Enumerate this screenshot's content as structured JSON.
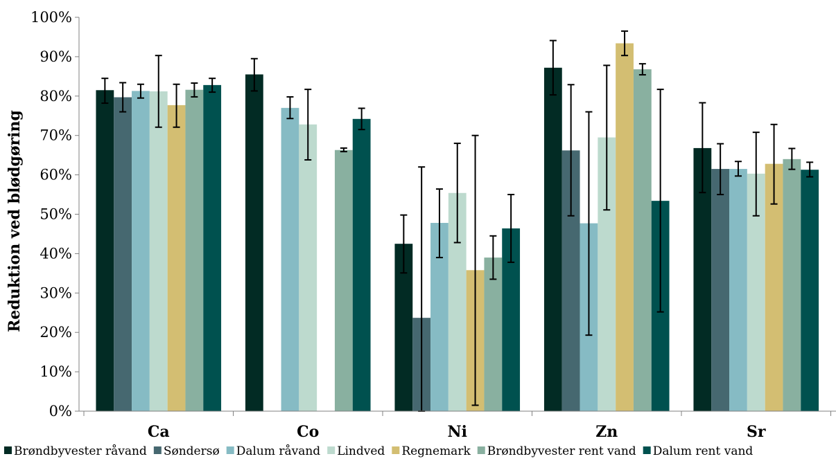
{
  "chart_data": {
    "type": "bar",
    "title": "",
    "xlabel": "",
    "ylabel": "Reduktion ved blødgøring",
    "ylim": [
      0,
      100
    ],
    "yticks": [
      "0%",
      "10%",
      "20%",
      "30%",
      "40%",
      "50%",
      "60%",
      "70%",
      "80%",
      "90%",
      "100%"
    ],
    "categories": [
      "Ca",
      "Co",
      "Ni",
      "Zn",
      "Sr"
    ],
    "legend_position": "bottom",
    "grid": false,
    "series": [
      {
        "name": "Brøndbyvester råvand",
        "color": "#022b24",
        "values": [
          81.5,
          85.5,
          42.5,
          87.2,
          66.8
        ],
        "err_low": [
          78.2,
          81.3,
          35.1,
          80.3,
          55.5
        ],
        "err_high": [
          84.5,
          89.5,
          49.8,
          94.1,
          78.3
        ]
      },
      {
        "name": "Søndersø",
        "color": "#466870",
        "values": [
          79.7,
          null,
          23.7,
          66.2,
          61.5
        ],
        "err_low": [
          76.0,
          null,
          0,
          49.6,
          55.0
        ],
        "err_high": [
          83.4,
          null,
          62.0,
          82.9,
          67.9
        ]
      },
      {
        "name": "Dalum råvand",
        "color": "#86bbc4",
        "values": [
          81.3,
          77.0,
          47.8,
          47.7,
          61.5
        ],
        "err_low": [
          79.5,
          74.3,
          39.0,
          19.3,
          59.7
        ],
        "err_high": [
          83.0,
          79.8,
          56.4,
          76.0,
          63.4
        ]
      },
      {
        "name": "Lindved",
        "color": "#bddace",
        "values": [
          81.2,
          72.8,
          55.4,
          69.5,
          60.3
        ],
        "err_low": [
          72.1,
          63.8,
          42.8,
          51.1,
          49.6
        ],
        "err_high": [
          90.3,
          81.7,
          68.0,
          87.8,
          70.8
        ]
      },
      {
        "name": "Regnemark",
        "color": "#d3be72",
        "values": [
          77.7,
          null,
          35.8,
          93.4,
          62.8
        ],
        "err_low": [
          72.1,
          null,
          1.5,
          90.3,
          52.6
        ],
        "err_high": [
          83.0,
          null,
          70.0,
          96.5,
          72.8
        ]
      },
      {
        "name": "Brøndbyvester rent vand",
        "color": "#89b0a0",
        "values": [
          81.6,
          66.3,
          39.0,
          86.8,
          64.0
        ],
        "err_low": [
          79.8,
          65.9,
          33.5,
          85.4,
          61.4
        ],
        "err_high": [
          83.3,
          66.8,
          44.5,
          88.2,
          66.7
        ]
      },
      {
        "name": "Dalum rent vand",
        "color": "#00514f",
        "values": [
          82.8,
          74.2,
          46.4,
          53.4,
          61.3
        ],
        "err_low": [
          81.0,
          71.5,
          37.8,
          25.2,
          59.5
        ],
        "err_high": [
          84.5,
          76.9,
          55.0,
          81.7,
          63.2
        ]
      }
    ]
  }
}
